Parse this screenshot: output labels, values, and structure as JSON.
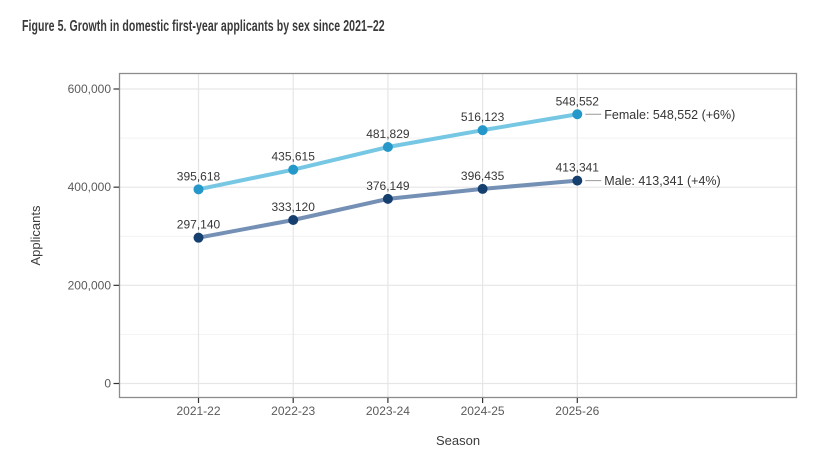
{
  "figure": {
    "title": "Figure 5. Growth in domestic first-year applicants by sex since 2021–22"
  },
  "chart_data": {
    "type": "line",
    "title": "Figure 5. Growth in domestic first-year applicants by sex since 2021–22",
    "xlabel": "Season",
    "ylabel": "Applicants",
    "categories": [
      "2021-22",
      "2022-23",
      "2023-24",
      "2024-25",
      "2025-26"
    ],
    "series": [
      {
        "name": "Female",
        "values": [
          395618,
          435615,
          481829,
          516123,
          548552
        ],
        "point_labels": [
          "395,618",
          "435,615",
          "481,829",
          "516,123",
          "548,552"
        ],
        "end_label": "Female: 548,552 (+6%)",
        "line_color": "#76c7e3",
        "point_color": "#2697c9"
      },
      {
        "name": "Male",
        "values": [
          297140,
          333120,
          376149,
          396435,
          413341
        ],
        "point_labels": [
          "297,140",
          "333,120",
          "376,149",
          "396,435",
          "413,341"
        ],
        "end_label": "Male: 413,341 (+4%)",
        "line_color": "#7590b5",
        "point_color": "#153f6e"
      }
    ],
    "y_ticks": [
      {
        "value": 0,
        "label": "0"
      },
      {
        "value": 200000,
        "label": "200,000"
      },
      {
        "value": 400000,
        "label": "400,000"
      },
      {
        "value": 600000,
        "label": "600,000"
      }
    ],
    "y_minor_ticks": [
      100000,
      300000,
      500000
    ],
    "ylim": [
      0,
      600000
    ],
    "grid": true,
    "legend_position": "direct-labels-right",
    "colors": {
      "grid_major": "#e6e6e6",
      "grid_minor": "#f2f2f2",
      "panel_border": "#8c8c8c",
      "tick_mark": "#333333",
      "connector": "#999999"
    }
  }
}
